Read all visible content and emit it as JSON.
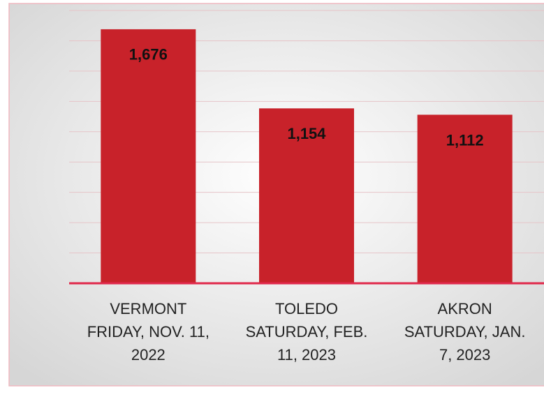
{
  "chart_data": {
    "type": "bar",
    "categories": [
      "VERMONT\nFRIDAY, NOV. 11,\n2022",
      "TOLEDO\nSATURDAY, FEB.\n11, 2023",
      "AKRON\nSATURDAY, JAN.\n7, 2023"
    ],
    "values": [
      1676,
      1154,
      1112
    ],
    "value_labels": [
      "1,676",
      "1,154",
      "1,112"
    ],
    "color": "#c8222a",
    "ylim": [
      0,
      1800
    ],
    "yticks": [
      0,
      200,
      400,
      600,
      800,
      1000,
      1200,
      1400,
      1600,
      1800
    ],
    "grid": true
  }
}
